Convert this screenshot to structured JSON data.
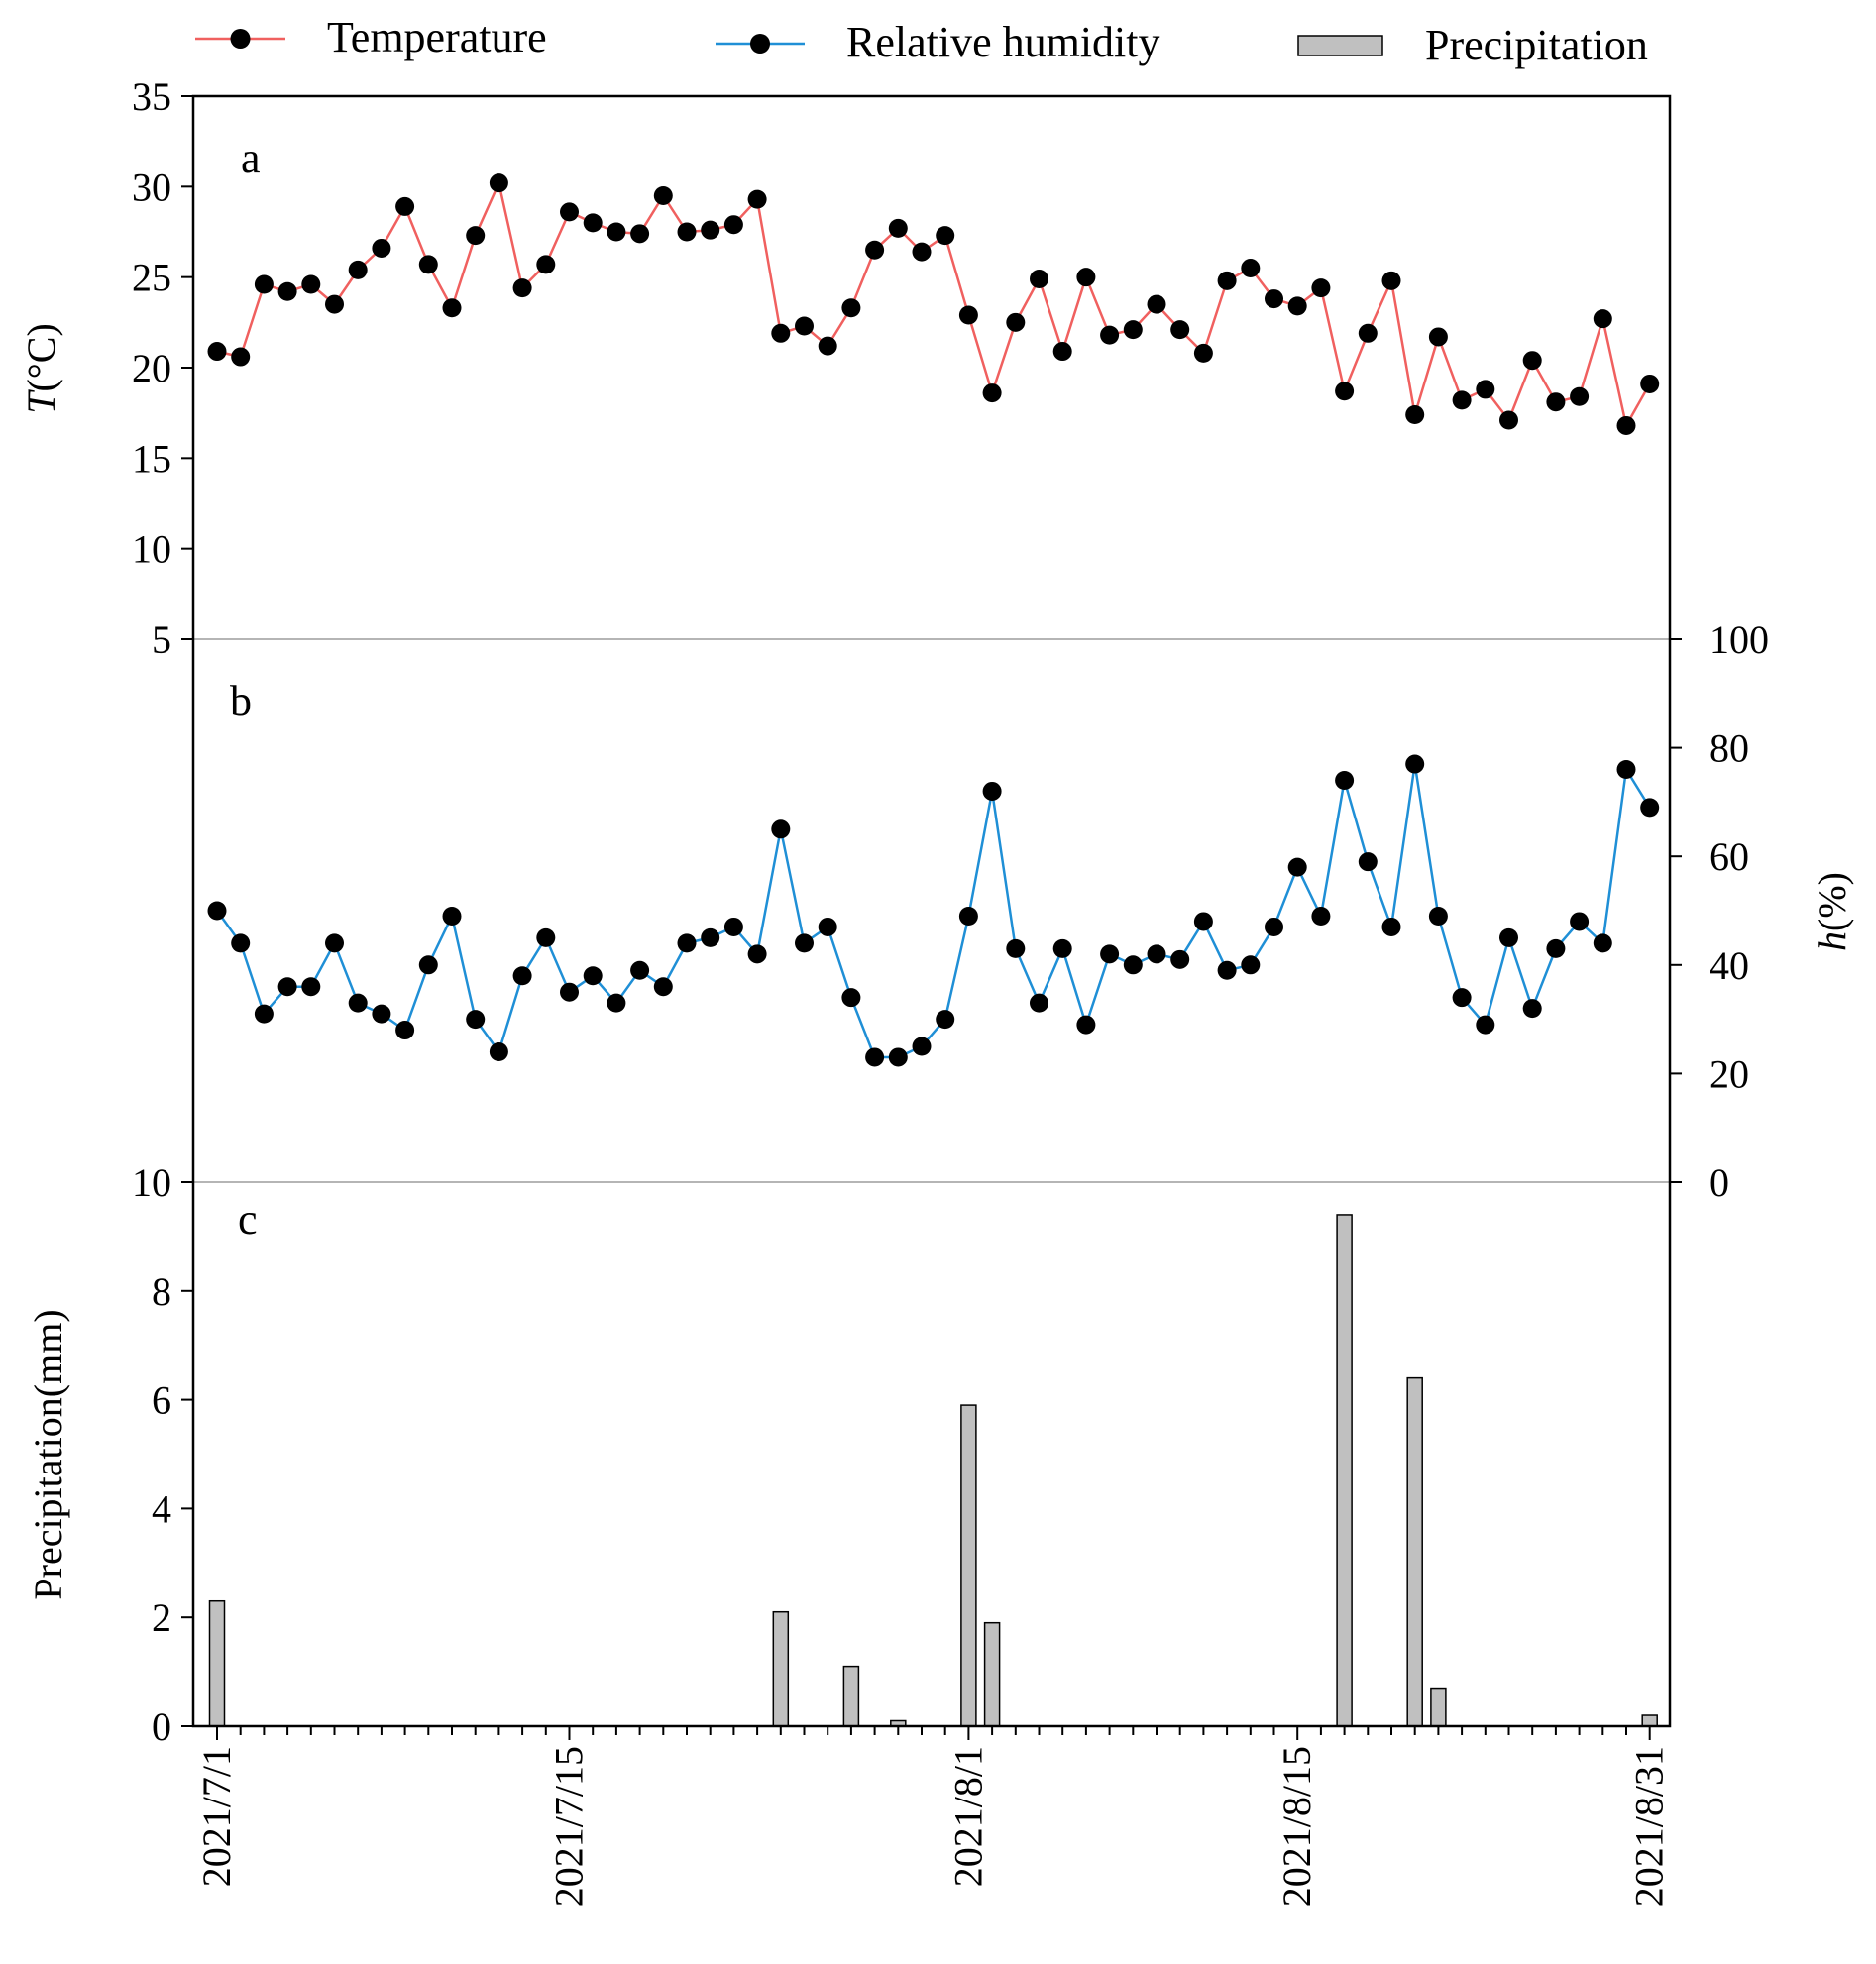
{
  "chart_data": [
    {
      "panel": "a",
      "type": "line",
      "series_name": "Temperature",
      "ylabel_italic": "T",
      "ylabel_unit": "(°C)",
      "ylim": [
        5,
        35
      ],
      "yticks": [
        5,
        10,
        15,
        20,
        25,
        30,
        35
      ],
      "color": "#f0605f",
      "marker_color": "#000000",
      "values": [
        20.9,
        20.6,
        24.6,
        24.2,
        24.6,
        23.5,
        25.4,
        26.6,
        28.9,
        25.7,
        23.3,
        27.3,
        30.2,
        24.4,
        25.7,
        28.6,
        28.0,
        27.5,
        27.4,
        29.5,
        27.5,
        27.6,
        27.9,
        29.3,
        21.9,
        22.3,
        21.2,
        23.3,
        26.5,
        27.7,
        26.4,
        27.3,
        22.9,
        18.6,
        22.5,
        24.9,
        20.9,
        25.0,
        21.8,
        22.1,
        23.5,
        22.1,
        20.8,
        24.8,
        25.5,
        23.8,
        23.4,
        24.4,
        18.7,
        21.9,
        24.8,
        17.4,
        21.7,
        18.2,
        18.8,
        17.1,
        20.4,
        18.1,
        18.4,
        22.7,
        16.8,
        19.1
      ]
    },
    {
      "panel": "b",
      "type": "line",
      "series_name": "Relative humidity",
      "ylabel_italic": "h",
      "ylabel_unit": "(%)",
      "ylim": [
        0,
        100
      ],
      "yticks": [
        0,
        20,
        40,
        60,
        80,
        100
      ],
      "color": "#1f8fd6",
      "marker_color": "#000000",
      "values": [
        50,
        44,
        31,
        36,
        36,
        44,
        33,
        31,
        28,
        40,
        49,
        30,
        24,
        38,
        45,
        35,
        38,
        33,
        39,
        36,
        44,
        45,
        47,
        42,
        65,
        44,
        47,
        34,
        23,
        23,
        25,
        30,
        49,
        72,
        43,
        33,
        43,
        29,
        42,
        40,
        42,
        41,
        48,
        39,
        40,
        47,
        58,
        49,
        74,
        59,
        47,
        77,
        49,
        34,
        29,
        45,
        32,
        43,
        48,
        44,
        76,
        69
      ]
    },
    {
      "panel": "c",
      "type": "bar",
      "series_name": "Precipitation",
      "ylabel": "Precipitation(mm)",
      "ylim": [
        0,
        10
      ],
      "yticks": [
        0,
        2,
        4,
        6,
        8,
        10
      ],
      "color": "#c0c0c0",
      "bars": [
        {
          "day": 0,
          "value": 2.3
        },
        {
          "day": 24,
          "value": 2.1
        },
        {
          "day": 27,
          "value": 1.1
        },
        {
          "day": 29,
          "value": 0.1
        },
        {
          "day": 32,
          "value": 5.9
        },
        {
          "day": 33,
          "value": 1.9
        },
        {
          "day": 48,
          "value": 9.4
        },
        {
          "day": 51,
          "value": 6.4
        },
        {
          "day": 52,
          "value": 0.7
        },
        {
          "day": 61,
          "value": 0.2
        }
      ]
    }
  ],
  "x_axis": {
    "n_days": 62,
    "tick_labels": [
      {
        "day": 0,
        "label": "2021/7/1"
      },
      {
        "day": 15,
        "label": "2021/7/15"
      },
      {
        "day": 32,
        "label": "2021/8/1"
      },
      {
        "day": 46,
        "label": "2021/8/15"
      },
      {
        "day": 61,
        "label": "2021/8/31"
      }
    ]
  },
  "legend": [
    {
      "label": "Temperature",
      "kind": "line",
      "color": "#f0605f"
    },
    {
      "label": "Relative humidity",
      "kind": "line",
      "color": "#1f8fd6"
    },
    {
      "label": "Precipitation",
      "kind": "bar",
      "color": "#c0c0c0"
    }
  ],
  "panel_letters": [
    "a",
    "b",
    "c"
  ]
}
